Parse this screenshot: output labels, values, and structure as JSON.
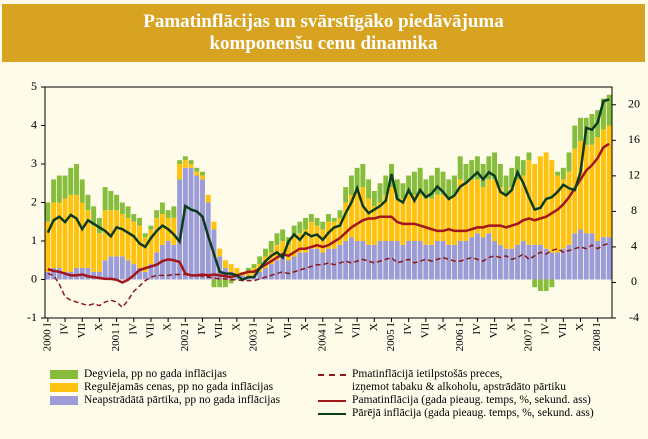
{
  "chart_data": {
    "type": "bar",
    "stacked": true,
    "title": "Pamatinflācijas un svārstīgāko piedāvājuma\nkomponenšu cenu dinamika",
    "categories": [
      "2000 I",
      null,
      null,
      "IV",
      null,
      null,
      "VII",
      null,
      null,
      "X",
      null,
      null,
      "2001 I",
      null,
      null,
      "IV",
      null,
      null,
      "VII",
      null,
      null,
      "X",
      null,
      null,
      "2002 I",
      null,
      null,
      "IV",
      null,
      null,
      "VII",
      null,
      null,
      "X",
      null,
      null,
      "2003 I",
      null,
      null,
      "IV",
      null,
      null,
      "VII",
      null,
      null,
      "X",
      null,
      null,
      "2004 I",
      null,
      null,
      "IV",
      null,
      null,
      "VII",
      null,
      null,
      "X",
      null,
      null,
      "2005 I",
      null,
      null,
      "IV",
      null,
      null,
      "VII",
      null,
      null,
      "X",
      null,
      null,
      "2006 I",
      null,
      null,
      "IV",
      null,
      null,
      "VII",
      null,
      null,
      "X",
      null,
      null,
      "2007 I",
      null,
      null,
      "IV",
      null,
      null,
      "VII",
      null,
      null,
      "X",
      null,
      null,
      "2008 I",
      null,
      null
    ],
    "ylim": [
      -1,
      5
    ],
    "yticks": [
      -1,
      0,
      1,
      2,
      3,
      4,
      5
    ],
    "y2lim": [
      -4,
      22
    ],
    "y2ticks": [
      -4,
      0,
      4,
      8,
      12,
      16,
      20
    ],
    "grid": false,
    "series": [
      {
        "name": "Neapstrādātā pārtika, pp no gada inflācijas",
        "type": "bar",
        "color": "#9c9cd8",
        "values": [
          0.2,
          0.3,
          0.3,
          0.2,
          0.2,
          0.3,
          0.3,
          0.3,
          0.2,
          0.2,
          0.5,
          0.6,
          0.6,
          0.6,
          0.5,
          0.4,
          0.3,
          0.2,
          0.4,
          0.7,
          0.9,
          1.0,
          0.9,
          2.6,
          2.9,
          2.9,
          2.7,
          2.6,
          2.0,
          1.3,
          0.6,
          0.3,
          0.2,
          0.1,
          0.1,
          0.1,
          0.1,
          0.2,
          0.3,
          0.4,
          0.5,
          0.6,
          0.5,
          0.6,
          0.7,
          0.7,
          0.8,
          0.8,
          0.7,
          0.8,
          0.8,
          0.9,
          1.0,
          1.1,
          1.0,
          1.0,
          0.9,
          0.9,
          1.0,
          1.0,
          1.0,
          1.0,
          0.9,
          1.0,
          1.0,
          1.0,
          0.9,
          0.9,
          1.0,
          1.0,
          0.9,
          0.9,
          1.0,
          1.0,
          1.1,
          1.2,
          1.1,
          1.2,
          1.0,
          0.9,
          0.8,
          0.8,
          0.9,
          1.0,
          0.9,
          0.9,
          0.9,
          0.8,
          0.7,
          0.7,
          0.8,
          0.9,
          1.2,
          1.3,
          1.2,
          1.2,
          1.0,
          1.1,
          1.1
        ]
      },
      {
        "name": "Regulējamās cenas, pp no gada inflācijas",
        "type": "bar",
        "color": "#ffc20e",
        "values": [
          1.3,
          1.7,
          1.7,
          1.9,
          2.0,
          1.9,
          1.7,
          1.5,
          1.2,
          1.0,
          1.3,
          1.2,
          1.2,
          1.1,
          1.1,
          1.1,
          1.1,
          0.9,
          0.9,
          0.9,
          0.8,
          0.6,
          0.7,
          0.4,
          0.2,
          0.1,
          0.1,
          0.1,
          0.2,
          0.2,
          0.2,
          0.2,
          0.2,
          0.2,
          0.1,
          0.1,
          0.2,
          0.2,
          0.3,
          0.3,
          0.4,
          0.4,
          0.4,
          0.5,
          0.5,
          0.6,
          0.7,
          0.6,
          0.6,
          0.7,
          0.7,
          0.7,
          1.0,
          1.1,
          1.3,
          1.4,
          1.2,
          1.0,
          1.0,
          1.2,
          1.4,
          1.1,
          1.2,
          1.2,
          1.2,
          1.2,
          1.2,
          1.2,
          1.2,
          1.2,
          1.2,
          1.3,
          1.6,
          1.5,
          1.5,
          1.4,
          1.3,
          1.4,
          1.6,
          1.5,
          1.4,
          1.6,
          1.7,
          1.7,
          2.2,
          2.1,
          2.3,
          2.5,
          2.4,
          2.0,
          1.8,
          1.9,
          2.2,
          2.3,
          2.3,
          2.3,
          2.7,
          2.8,
          2.9
        ]
      },
      {
        "name": "Degviela, pp no gada inflācijas",
        "type": "bar",
        "color": "#86bd3c",
        "values": [
          0.5,
          0.6,
          0.7,
          0.6,
          0.7,
          0.8,
          0.6,
          0.4,
          0.5,
          0.4,
          0.6,
          0.5,
          0.4,
          0.3,
          0.3,
          0.2,
          0.2,
          0.1,
          0.1,
          0.2,
          0.3,
          0.2,
          0.3,
          0.1,
          0.1,
          0.1,
          0.1,
          0.1,
          0.0,
          -0.2,
          -0.2,
          -0.2,
          -0.1,
          0.0,
          0.0,
          0.1,
          0.1,
          0.2,
          0.2,
          0.3,
          0.3,
          0.3,
          0.2,
          0.3,
          0.3,
          0.3,
          0.2,
          0.2,
          0.2,
          0.2,
          0.1,
          0.2,
          0.4,
          0.5,
          0.6,
          0.6,
          0.5,
          0.4,
          0.5,
          0.5,
          0.6,
          0.5,
          0.4,
          0.5,
          0.6,
          0.7,
          0.5,
          0.6,
          0.7,
          0.6,
          0.5,
          0.5,
          0.6,
          0.5,
          0.5,
          0.6,
          0.6,
          0.6,
          0.7,
          0.6,
          0.5,
          0.5,
          0.6,
          0.4,
          0.2,
          -0.2,
          -0.3,
          -0.3,
          -0.2,
          0.1,
          0.3,
          0.5,
          0.6,
          0.6,
          0.7,
          0.8,
          0.7,
          0.8,
          0.8
        ]
      },
      {
        "name": "Pmatinflācijā ietilpstošās preces,\nizņemot tabaku & alkoholu, apstrādāto pārtiku",
        "type": "line",
        "axis": "y2",
        "dashed": true,
        "color": "#8b1a1a",
        "values": [
          1.0,
          0.8,
          -0.2,
          -1.6,
          -2.0,
          -2.2,
          -2.4,
          -2.6,
          -2.4,
          -2.6,
          -2.2,
          -2.0,
          -2.2,
          -2.8,
          -2.0,
          -1.0,
          -0.4,
          0.2,
          0.6,
          0.8,
          0.8,
          0.8,
          0.9,
          0.9,
          0.9,
          0.8,
          0.8,
          0.7,
          0.6,
          0.5,
          0.4,
          0.4,
          0.3,
          0.3,
          0.2,
          0.2,
          0.2,
          0.4,
          0.6,
          0.8,
          1.0,
          1.2,
          1.0,
          1.2,
          1.4,
          1.6,
          1.8,
          2.0,
          2.0,
          2.2,
          2.0,
          2.2,
          2.4,
          2.2,
          2.4,
          2.6,
          2.4,
          2.2,
          2.4,
          2.6,
          2.8,
          2.2,
          2.4,
          2.6,
          2.2,
          2.4,
          2.6,
          2.4,
          2.6,
          2.8,
          2.6,
          2.4,
          2.4,
          2.6,
          2.8,
          2.6,
          2.4,
          2.8,
          3.0,
          2.8,
          3.0,
          2.6,
          2.8,
          3.2,
          2.6,
          3.0,
          3.4,
          3.2,
          3.6,
          3.8,
          3.4,
          3.6,
          3.8,
          4.0,
          3.8,
          4.2,
          3.8,
          4.2,
          4.4
        ]
      },
      {
        "name": "Pamatinflācija (gada pieaug. temps, %, sekund. ass)",
        "type": "line",
        "axis": "y2",
        "dashed": false,
        "color": "#a3161c",
        "values": [
          1.5,
          1.3,
          1.2,
          1.0,
          0.8,
          0.8,
          0.9,
          0.7,
          0.6,
          0.5,
          0.4,
          0.4,
          0.3,
          0.0,
          0.3,
          0.8,
          1.4,
          1.6,
          1.8,
          2.0,
          2.4,
          2.6,
          2.5,
          2.3,
          1.0,
          0.8,
          0.8,
          0.9,
          0.8,
          0.9,
          0.8,
          0.7,
          0.6,
          0.8,
          1.0,
          1.2,
          1.2,
          1.6,
          2.0,
          2.4,
          2.8,
          3.2,
          3.0,
          3.4,
          3.8,
          3.8,
          4.0,
          4.2,
          4.0,
          4.2,
          4.6,
          5.0,
          5.6,
          6.2,
          6.6,
          7.0,
          7.2,
          7.2,
          7.4,
          7.4,
          7.4,
          6.8,
          6.6,
          6.6,
          6.6,
          6.4,
          6.2,
          6.0,
          5.8,
          5.8,
          6.0,
          5.8,
          5.8,
          5.8,
          6.0,
          6.2,
          6.2,
          6.4,
          6.4,
          6.4,
          6.2,
          6.4,
          6.6,
          7.0,
          7.2,
          7.0,
          7.2,
          7.4,
          7.8,
          8.2,
          8.8,
          9.6,
          10.6,
          11.6,
          12.6,
          13.2,
          14.0,
          15.2,
          15.6
        ]
      },
      {
        "name": "Pārējā inflācija (gada pieaug. temps, %, sekund. ass)",
        "type": "line",
        "axis": "y2",
        "dashed": false,
        "color": "#0d3b1f",
        "values": [
          5.6,
          7.0,
          7.4,
          6.8,
          7.6,
          7.2,
          6.0,
          7.0,
          6.6,
          6.2,
          5.8,
          5.2,
          6.2,
          6.0,
          5.6,
          5.2,
          4.4,
          4.0,
          5.0,
          5.8,
          6.4,
          6.0,
          5.4,
          4.6,
          8.6,
          8.2,
          8.0,
          7.4,
          5.2,
          3.2,
          1.2,
          1.0,
          1.0,
          0.8,
          0.3,
          0.6,
          0.6,
          1.6,
          2.4,
          3.0,
          3.4,
          2.8,
          4.6,
          5.4,
          4.8,
          5.6,
          5.2,
          5.4,
          4.8,
          5.6,
          6.2,
          6.4,
          7.8,
          9.0,
          10.6,
          8.6,
          7.8,
          8.2,
          8.6,
          9.2,
          12.2,
          9.4,
          9.0,
          10.4,
          9.2,
          10.4,
          9.6,
          10.0,
          10.8,
          10.2,
          9.4,
          9.8,
          10.8,
          11.2,
          11.8,
          12.4,
          11.6,
          12.4,
          12.0,
          10.2,
          9.8,
          10.4,
          12.4,
          11.2,
          9.6,
          8.2,
          8.4,
          9.4,
          9.6,
          10.2,
          11.0,
          10.6,
          10.4,
          12.4,
          17.4,
          17.2,
          18.0,
          20.4,
          20.6
        ]
      }
    ]
  }
}
